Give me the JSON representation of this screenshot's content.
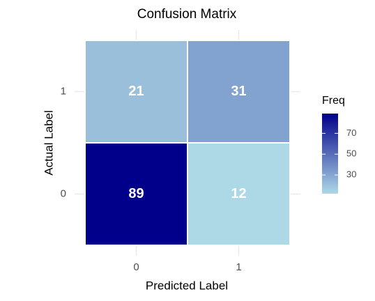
{
  "chart_data": {
    "type": "heatmap",
    "title": "Confusion Matrix",
    "x_label": "Predicted Label",
    "y_label": "Actual Label",
    "x_categories": [
      "0",
      "1"
    ],
    "y_categories": [
      "0",
      "1"
    ],
    "values": [
      [
        89,
        12
      ],
      [
        21,
        31
      ]
    ],
    "color_low": "#add8e6",
    "color_high": "#00008b",
    "color_range": [
      12,
      89
    ],
    "legend_title": "Freq",
    "legend_ticks": [
      30,
      50,
      70
    ],
    "grid": true
  }
}
